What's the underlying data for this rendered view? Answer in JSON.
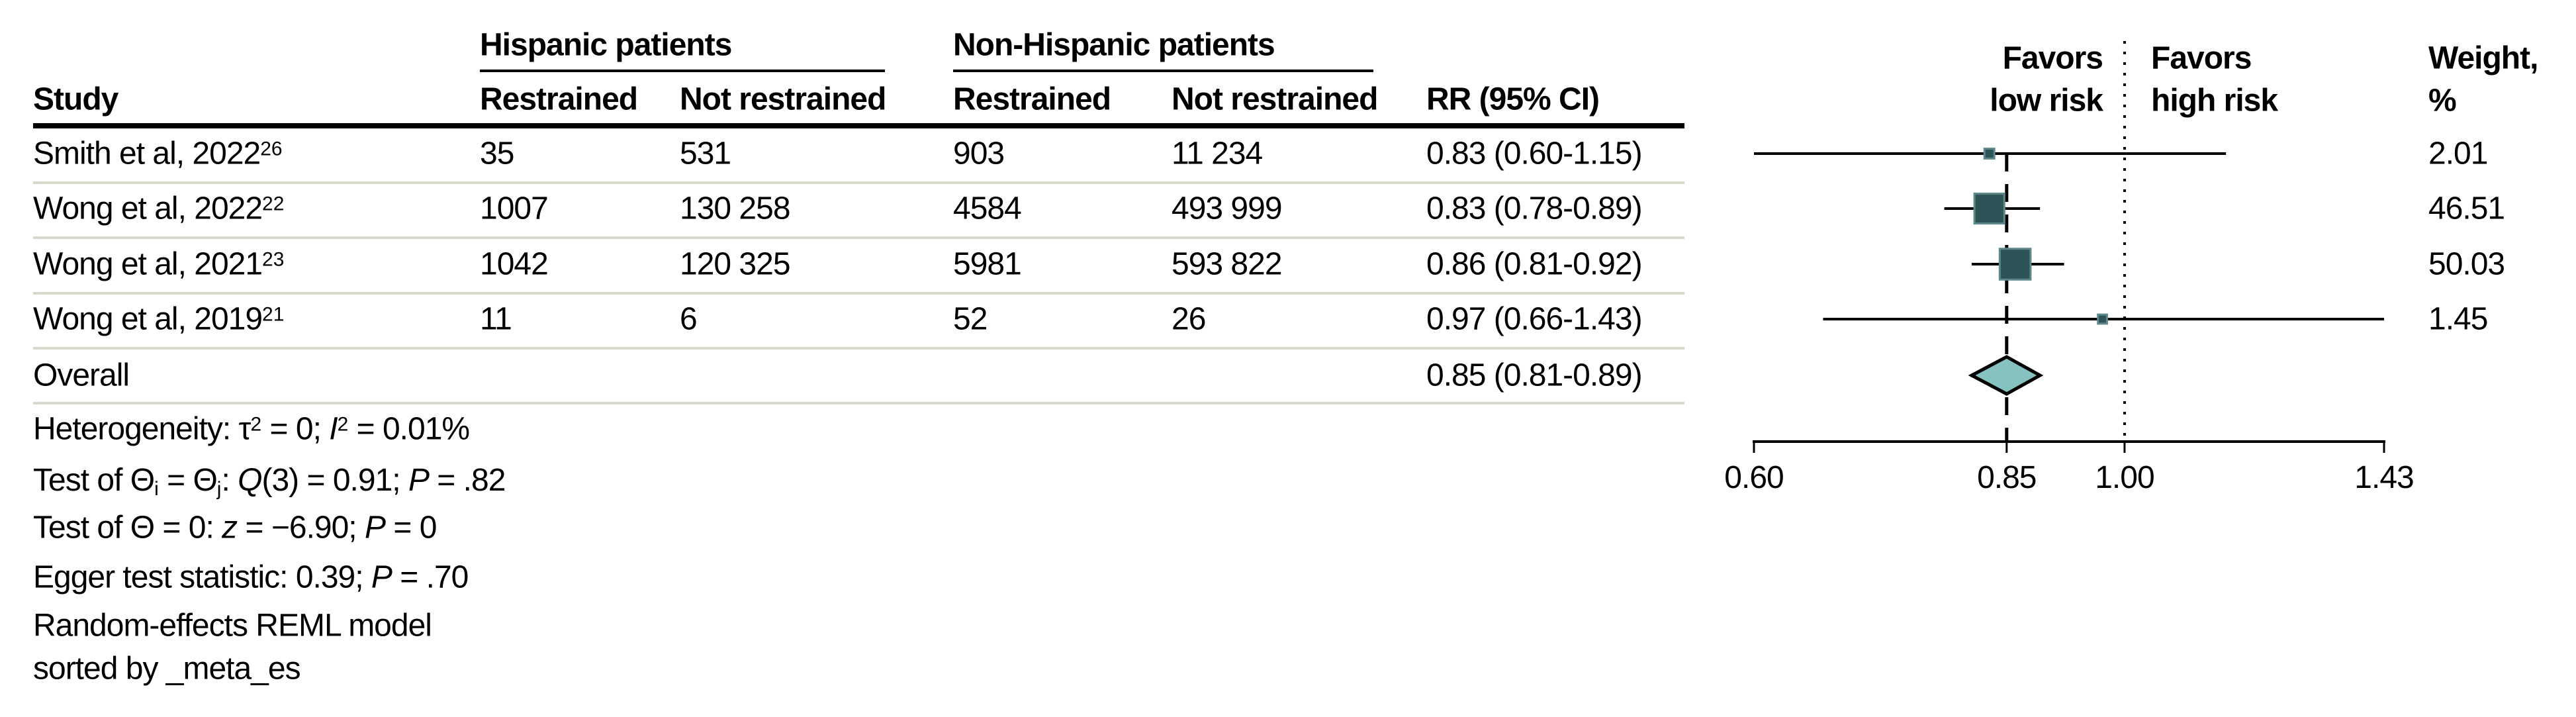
{
  "table": {
    "group_hispanic": "Hispanic patients",
    "group_non_hispanic": "Non-Hispanic patients",
    "col_study": "Study",
    "col_restrained_h": "Restrained",
    "col_not_restrained_h": "Not restrained",
    "col_restrained_nh": "Restrained",
    "col_not_restrained_nh": "Not restrained",
    "col_rr": "RR (95% CI)",
    "rows": [
      {
        "study": "Smith et al, 2022",
        "ref": "26",
        "h_restrained": "35",
        "h_not": "531",
        "nh_restrained": "903",
        "nh_not": "11 234",
        "rr_text": "0.83 (0.60-1.15)",
        "weight": "2.01"
      },
      {
        "study": "Wong et al, 2022",
        "ref": "22",
        "h_restrained": "1007",
        "h_not": "130 258",
        "nh_restrained": "4584",
        "nh_not": "493 999",
        "rr_text": "0.83 (0.78-0.89)",
        "weight": "46.51"
      },
      {
        "study": "Wong et al, 2021",
        "ref": "23",
        "h_restrained": "1042",
        "h_not": "120 325",
        "nh_restrained": "5981",
        "nh_not": "593 822",
        "rr_text": "0.86 (0.81-0.92)",
        "weight": "50.03"
      },
      {
        "study": "Wong et al, 2019",
        "ref": "21",
        "h_restrained": "11",
        "h_not": "6",
        "nh_restrained": "52",
        "nh_not": "26",
        "rr_text": "0.97 (0.66-1.43)",
        "weight": "1.45"
      }
    ],
    "overall_label": "Overall",
    "overall_rr_text": "0.85 (0.81-0.89)"
  },
  "plot_labels": {
    "favors_low_1": "Favors",
    "favors_low_2": "low risk",
    "favors_high_1": "Favors",
    "favors_high_2": "high risk",
    "weight_1": "Weight,",
    "weight_2": "%"
  },
  "footnotes": {
    "het": {
      "p1": "Heterogeneity: τ",
      "s1": "2",
      "p2": " = 0; ",
      "i1": "I",
      "s2": "2",
      "p3": " = 0.01%"
    },
    "q": {
      "p1": "Test of Θ",
      "sub1": "i",
      "p2": " = Θ",
      "sub2": "j",
      "p3": ": ",
      "i1": "Q",
      "p4": "(3) = 0.91; ",
      "i2": "P",
      "p5": " = .82"
    },
    "z": {
      "p1": "Test of Θ = 0: ",
      "i1": "z",
      "p2": " = −6.90; ",
      "i2": "P",
      "p3": " = 0"
    },
    "egger": {
      "p1": "Egger test statistic: 0.39; ",
      "i1": "P",
      "p2": " = .70"
    },
    "model": "Random-effects REML model",
    "sort": "sorted by _meta_es"
  },
  "colors": {
    "square_fill": "#2F5457",
    "square_stroke": "#5E898B",
    "diamond_fill": "#85C2C0",
    "diamond_stroke": "#000000",
    "line": "#000000",
    "separator": "#d8d8cb"
  },
  "chart_data": {
    "type": "forest",
    "x_scale": "log",
    "x_ticks": [
      0.6,
      0.85,
      1.0,
      1.43
    ],
    "x_tick_labels": [
      "0.60",
      "0.85",
      "1.00",
      "1.43"
    ],
    "x_range": [
      0.6,
      1.43
    ],
    "reference_line": 1.0,
    "overall_estimate_line": 0.85,
    "effect_label": "RR (95% CI)",
    "studies": [
      {
        "label": "Smith et al, 2022",
        "ref": "26",
        "rr": 0.83,
        "ci_low": 0.6,
        "ci_high": 1.15,
        "weight": 2.01
      },
      {
        "label": "Wong et al, 2022",
        "ref": "22",
        "rr": 0.83,
        "ci_low": 0.78,
        "ci_high": 0.89,
        "weight": 46.51
      },
      {
        "label": "Wong et al, 2021",
        "ref": "23",
        "rr": 0.86,
        "ci_low": 0.81,
        "ci_high": 0.92,
        "weight": 50.03
      },
      {
        "label": "Wong et al, 2019",
        "ref": "21",
        "rr": 0.97,
        "ci_low": 0.66,
        "ci_high": 1.43,
        "weight": 1.45
      }
    ],
    "overall": {
      "label": "Overall",
      "rr": 0.85,
      "ci_low": 0.81,
      "ci_high": 0.89
    }
  }
}
